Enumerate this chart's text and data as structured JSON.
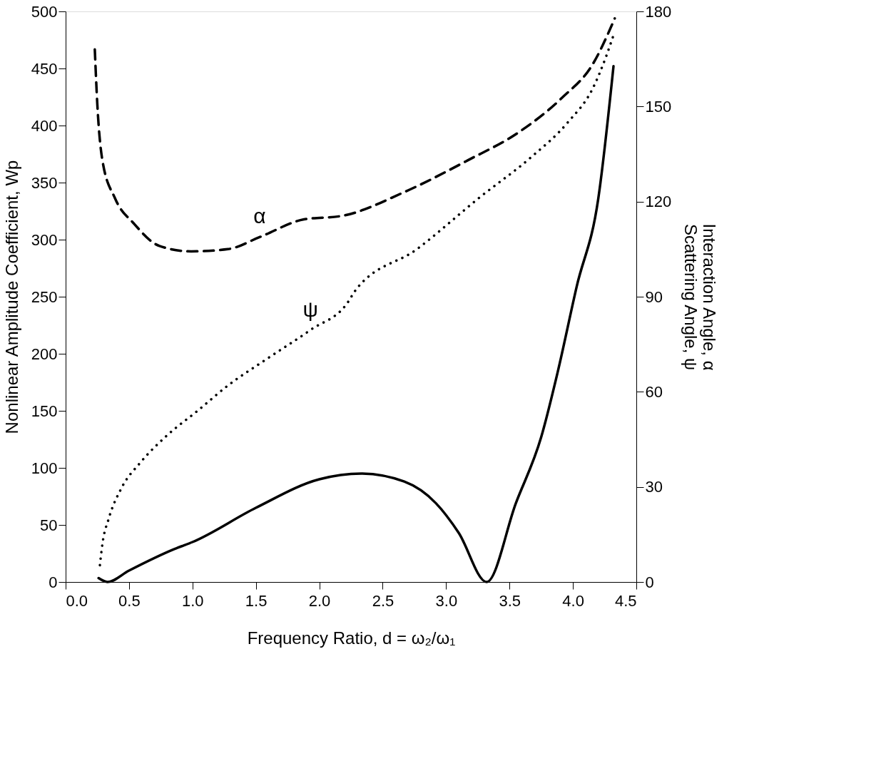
{
  "chart_data": {
    "type": "line",
    "xlabel": "Frequency Ratio, d = ω₂/ω₁",
    "ylabel": "Nonlinear Amplitude Coefficient, Wp",
    "y2label": "Interaction Angle, α\nScattering Angle, ψ",
    "xlim": [
      0,
      4.5
    ],
    "ylim": [
      0,
      500
    ],
    "y2lim": [
      0,
      180
    ],
    "xticks": [
      {
        "value": 0,
        "label": "0.0"
      },
      0.5,
      {
        "value": 1,
        "label": "1.0"
      },
      1.5,
      {
        "value": 2,
        "label": "2.0"
      },
      2.5,
      {
        "value": 3,
        "label": "3.0"
      },
      3.5,
      {
        "value": 4,
        "label": "4.0"
      },
      4.5
    ],
    "yticks": [
      0,
      50,
      100,
      150,
      200,
      250,
      300,
      350,
      400,
      450,
      500
    ],
    "y2ticks": [
      0,
      30,
      60,
      90,
      120,
      150,
      180
    ],
    "grid": false,
    "legend": false,
    "marker": "none",
    "series": [
      {
        "color": "#000000",
        "line_style": "solid",
        "x": [
          0.26,
          0.33,
          0.5,
          0.86,
          1.0,
          1.5,
          2.0,
          2.33,
          2.67,
          2.92,
          3.1,
          3.32,
          3.55,
          3.75,
          3.88,
          4.03,
          4.2,
          4.32
        ],
        "values": [
          3.4,
          0,
          10,
          29,
          35,
          65,
          90,
          95,
          88,
          69,
          43,
          0,
          69,
          127,
          184,
          259,
          336,
          452
        ]
      },
      {
        "name": "α",
        "color": "#000000",
        "line_style": "dashed",
        "axis": "y2",
        "x": [
          0.23,
          0.25,
          0.29,
          0.39,
          0.54,
          0.74,
          0.99,
          1.28,
          1.53,
          1.88,
          2.18,
          2.67,
          3.17,
          3.57,
          3.91,
          4.16,
          4.33
        ],
        "values": [
          168,
          150.6,
          133,
          121,
          113,
          106,
          104.3,
          105,
          108.8,
          114.4,
          115.5,
          123,
          133,
          141.8,
          152.6,
          163.6,
          177.8
        ]
      },
      {
        "name": "ψ",
        "color": "#000000",
        "line_style": "dotted",
        "axis": "y2",
        "x": [
          0.27,
          0.29,
          0.34,
          0.44,
          0.59,
          0.79,
          1.04,
          1.28,
          1.58,
          1.93,
          2.23,
          2.28,
          2.77,
          3.27,
          3.67,
          3.96,
          4.16,
          4.26,
          4.33
        ],
        "values": [
          5.3,
          12,
          20,
          29.6,
          37.7,
          45.9,
          54,
          62,
          70.2,
          79.5,
          88.5,
          91.7,
          105,
          121.5,
          134,
          145,
          156,
          165.6,
          173.7
        ]
      }
    ]
  }
}
